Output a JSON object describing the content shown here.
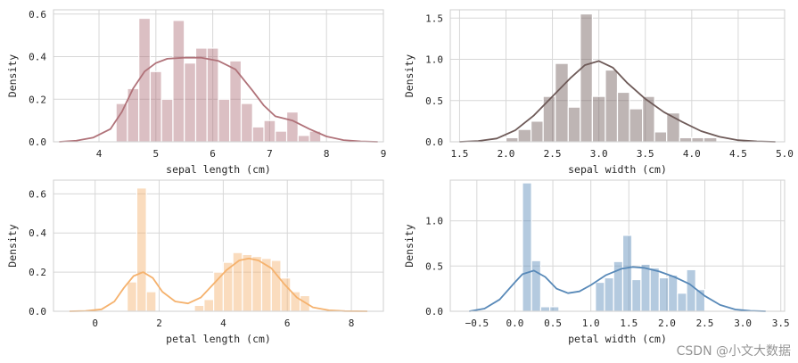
{
  "watermark": "CSDN @小文大数据",
  "chart_data": [
    {
      "type": "histogram+kde",
      "xlabel": "sepal length (cm)",
      "ylabel": "Density",
      "xlim": [
        3.2,
        9.0
      ],
      "ylim": [
        0,
        0.62
      ],
      "xticks": [
        4,
        5,
        6,
        7,
        8,
        9
      ],
      "yticks": [
        0.0,
        0.2,
        0.4,
        0.6
      ],
      "ytick_labels": [
        "0.0",
        "0.2",
        "0.4",
        "0.6"
      ],
      "grid": true,
      "color": "#b07279",
      "bars": {
        "edges": [
          4.3,
          4.5,
          4.7,
          4.9,
          5.1,
          5.3,
          5.5,
          5.7,
          5.9,
          6.1,
          6.3,
          6.5,
          6.7,
          6.9,
          7.1,
          7.3,
          7.5,
          7.7,
          7.9
        ],
        "heights": [
          0.18,
          0.25,
          0.58,
          0.33,
          0.2,
          0.57,
          0.37,
          0.44,
          0.44,
          0.2,
          0.38,
          0.18,
          0.07,
          0.1,
          0.05,
          0.14,
          0.03,
          0.05
        ]
      },
      "kde": {
        "x": [
          3.3,
          3.6,
          3.9,
          4.2,
          4.4,
          4.6,
          4.8,
          5.0,
          5.2,
          5.5,
          5.8,
          6.1,
          6.4,
          6.7,
          6.9,
          7.1,
          7.4,
          7.7,
          8.0,
          8.3,
          8.6,
          8.9
        ],
        "y": [
          0.0,
          0.005,
          0.02,
          0.06,
          0.14,
          0.25,
          0.33,
          0.37,
          0.39,
          0.395,
          0.395,
          0.38,
          0.34,
          0.24,
          0.17,
          0.12,
          0.1,
          0.06,
          0.025,
          0.008,
          0.002,
          0.0
        ]
      }
    },
    {
      "type": "histogram+kde",
      "xlabel": "sepal width (cm)",
      "ylabel": "Density",
      "xlim": [
        1.4,
        5.0
      ],
      "ylim": [
        0,
        1.6
      ],
      "xticks": [
        1.5,
        2.0,
        2.5,
        3.0,
        3.5,
        4.0,
        4.5,
        5.0
      ],
      "yticks": [
        0.0,
        0.5,
        1.0,
        1.5
      ],
      "ytick_labels": [
        "0.0",
        "0.5",
        "1.0",
        "1.5"
      ],
      "grid": true,
      "color": "#6e5a58",
      "bars": {
        "edges": [
          2.0,
          2.13,
          2.27,
          2.4,
          2.53,
          2.67,
          2.8,
          2.93,
          3.07,
          3.2,
          3.33,
          3.47,
          3.6,
          3.73,
          3.87,
          4.0,
          4.13,
          4.27,
          4.4
        ],
        "heights": [
          0.05,
          0.15,
          0.25,
          0.55,
          0.95,
          0.42,
          1.55,
          0.55,
          0.87,
          0.6,
          0.4,
          0.55,
          0.12,
          0.35,
          0.05,
          0.05,
          0.05,
          0.0
        ]
      },
      "kde": {
        "x": [
          1.5,
          1.7,
          1.9,
          2.1,
          2.3,
          2.5,
          2.7,
          2.85,
          3.0,
          3.15,
          3.3,
          3.5,
          3.7,
          3.9,
          4.1,
          4.3,
          4.5,
          4.7,
          4.9
        ],
        "y": [
          0.0,
          0.01,
          0.04,
          0.14,
          0.32,
          0.55,
          0.78,
          0.93,
          0.98,
          0.9,
          0.72,
          0.52,
          0.36,
          0.24,
          0.13,
          0.06,
          0.02,
          0.005,
          0.0
        ]
      }
    },
    {
      "type": "histogram+kde",
      "xlabel": "petal length (cm)",
      "ylabel": "Density",
      "xlim": [
        -1.3,
        9.0
      ],
      "ylim": [
        0,
        0.67
      ],
      "xticks": [
        0,
        2,
        4,
        6,
        8
      ],
      "yticks": [
        0.0,
        0.2,
        0.4,
        0.6
      ],
      "ytick_labels": [
        "0.0",
        "0.2",
        "0.4",
        "0.6"
      ],
      "grid": true,
      "color": "#f5b26e",
      "bars": {
        "edges": [
          1.0,
          1.3,
          1.6,
          1.9,
          2.2,
          2.5,
          2.8,
          3.1,
          3.4,
          3.7,
          4.0,
          4.3,
          4.6,
          4.9,
          5.2,
          5.5,
          5.8,
          6.1,
          6.4,
          6.7,
          7.0
        ],
        "heights": [
          0.15,
          0.63,
          0.1,
          0.0,
          0.0,
          0.0,
          0.0,
          0.03,
          0.06,
          0.2,
          0.25,
          0.3,
          0.29,
          0.28,
          0.27,
          0.26,
          0.17,
          0.1,
          0.08,
          0.0
        ]
      },
      "kde": {
        "x": [
          -0.8,
          -0.3,
          0.2,
          0.6,
          0.9,
          1.2,
          1.5,
          1.8,
          2.1,
          2.5,
          2.9,
          3.3,
          3.7,
          4.1,
          4.5,
          4.8,
          5.1,
          5.5,
          5.9,
          6.3,
          6.8,
          7.3,
          7.8,
          8.5
        ],
        "y": [
          0.0,
          0.002,
          0.01,
          0.05,
          0.12,
          0.18,
          0.2,
          0.17,
          0.1,
          0.05,
          0.04,
          0.07,
          0.14,
          0.21,
          0.26,
          0.27,
          0.26,
          0.22,
          0.14,
          0.07,
          0.02,
          0.005,
          0.001,
          0.0
        ]
      }
    },
    {
      "type": "histogram+kde",
      "xlabel": "petal width (cm)",
      "ylabel": "Density",
      "xlim": [
        -0.85,
        3.55
      ],
      "ylim": [
        0,
        1.45
      ],
      "xticks": [
        -0.5,
        0.0,
        0.5,
        1.0,
        1.5,
        2.0,
        2.5,
        3.0,
        3.5
      ],
      "yticks": [
        0.0,
        0.5,
        1.0
      ],
      "ytick_labels": [
        "0.0",
        "0.5",
        "1.0"
      ],
      "grid": true,
      "color": "#5889b8",
      "bars": {
        "edges": [
          0.1,
          0.22,
          0.34,
          0.46,
          0.58,
          0.7,
          0.82,
          0.94,
          1.06,
          1.18,
          1.3,
          1.42,
          1.54,
          1.66,
          1.78,
          1.9,
          2.02,
          2.14,
          2.26,
          2.38,
          2.5
        ],
        "heights": [
          1.42,
          0.56,
          0.05,
          0.05,
          0.0,
          0.0,
          0.0,
          0.0,
          0.32,
          0.37,
          0.55,
          0.84,
          0.35,
          0.52,
          0.48,
          0.37,
          0.4,
          0.2,
          0.46,
          0.24
        ]
      },
      "kde": {
        "x": [
          -0.6,
          -0.4,
          -0.2,
          0.0,
          0.1,
          0.25,
          0.4,
          0.55,
          0.7,
          0.85,
          1.0,
          1.2,
          1.4,
          1.55,
          1.7,
          1.9,
          2.1,
          2.3,
          2.5,
          2.7,
          2.9,
          3.1,
          3.3
        ],
        "y": [
          0.0,
          0.03,
          0.13,
          0.32,
          0.41,
          0.45,
          0.38,
          0.25,
          0.2,
          0.22,
          0.29,
          0.4,
          0.47,
          0.49,
          0.48,
          0.44,
          0.38,
          0.3,
          0.17,
          0.07,
          0.02,
          0.005,
          0.0
        ]
      }
    }
  ]
}
